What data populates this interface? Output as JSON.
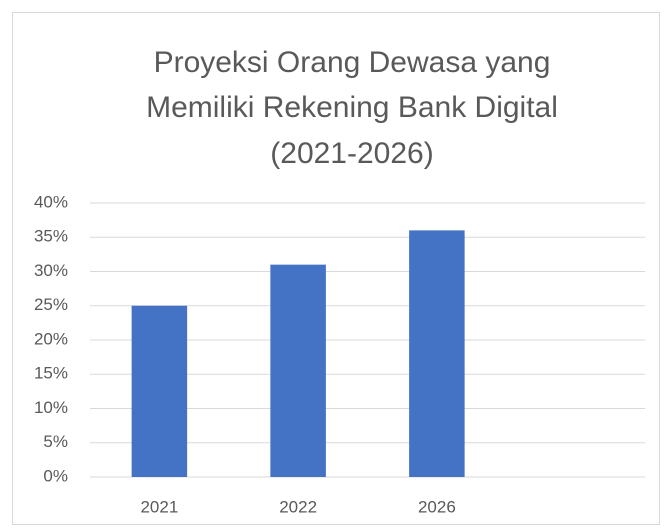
{
  "chart_data": {
    "type": "bar",
    "title": [
      "Proyeksi Orang Dewasa yang",
      "Memiliki Rekening Bank Digital",
      "(2021-2026)"
    ],
    "categories": [
      "2021",
      "2022",
      "2026",
      null
    ],
    "values": [
      25,
      31,
      36,
      null
    ],
    "color": "#4472c4",
    "ylim": [
      0,
      40
    ],
    "yticks": [
      {
        "value": 0,
        "label": "0%"
      },
      {
        "value": 5,
        "label": "5%"
      },
      {
        "value": 10,
        "label": "10%"
      },
      {
        "value": 15,
        "label": "15%"
      },
      {
        "value": 20,
        "label": "20%"
      },
      {
        "value": 25,
        "label": "25%"
      },
      {
        "value": 30,
        "label": "30%"
      },
      {
        "value": 35,
        "label": "35%"
      },
      {
        "value": 40,
        "label": "40%"
      }
    ],
    "grid": true
  }
}
